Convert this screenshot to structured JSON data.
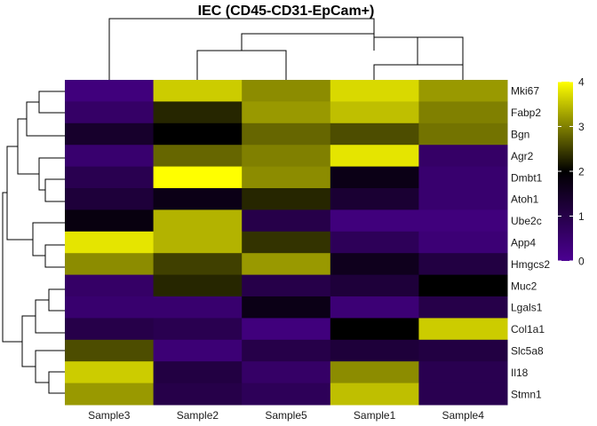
{
  "chart_data": {
    "type": "heatmap",
    "title": "IEC (CD45-CD31-EpCam+)",
    "columns": [
      "Sample3",
      "Sample2",
      "Sample5",
      "Sample1",
      "Sample4"
    ],
    "rows": [
      "Mki67",
      "Fabp2",
      "Bgn",
      "Agr2",
      "Dmbt1",
      "Atoh1",
      "Ube2c",
      "App4",
      "Hmgcs2",
      "Muc2",
      "Lgals1",
      "Col1a1",
      "Slc5a8",
      "Il18",
      "Stmn1"
    ],
    "values": [
      [
        0.3,
        3.6,
        3.1,
        3.7,
        3.2
      ],
      [
        0.6,
        2.3,
        3.2,
        3.5,
        3.0
      ],
      [
        1.4,
        2.0,
        2.8,
        2.6,
        2.9
      ],
      [
        0.5,
        2.8,
        3.0,
        3.8,
        0.6
      ],
      [
        0.9,
        4.0,
        3.1,
        1.7,
        0.5
      ],
      [
        1.2,
        1.7,
        2.3,
        1.3,
        0.5
      ],
      [
        1.8,
        3.4,
        1.0,
        0.3,
        0.3
      ],
      [
        3.8,
        3.4,
        2.4,
        0.8,
        0.4
      ],
      [
        3.1,
        2.5,
        3.2,
        1.6,
        1.1
      ],
      [
        0.6,
        2.3,
        1.0,
        1.2,
        2.0
      ],
      [
        0.5,
        0.5,
        1.7,
        0.4,
        1.0
      ],
      [
        1.0,
        0.9,
        0.3,
        2.0,
        3.6
      ],
      [
        2.6,
        0.4,
        1.0,
        1.2,
        1.1
      ],
      [
        3.6,
        1.1,
        0.6,
        3.1,
        0.9
      ],
      [
        3.2,
        1.0,
        0.8,
        3.5,
        0.9
      ]
    ],
    "color_scale": {
      "min": 0,
      "max": 4,
      "low": "#4b0092",
      "mid": "#000000",
      "high": "#ffff00"
    },
    "legend_ticks": [
      0,
      1,
      2,
      3,
      4
    ],
    "legend_placement": "right",
    "column_dendrogram": true,
    "row_dendrogram": true
  }
}
